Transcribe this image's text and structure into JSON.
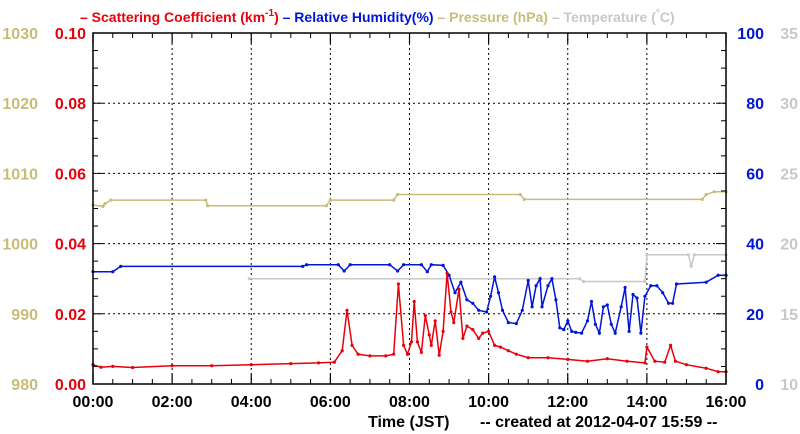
{
  "chart_data": {
    "type": "line",
    "legend_placement": "top",
    "xlabel": "Time (JST)",
    "created_note": "-- created at 2012-04-07 15:59 --",
    "x_ticks": [
      "00:00",
      "02:00",
      "04:00",
      "06:00",
      "08:00",
      "10:00",
      "12:00",
      "14:00",
      "16:00"
    ],
    "x_range_hours": [
      0,
      16
    ],
    "grid": true,
    "axes": {
      "scattering": {
        "ylim": [
          0,
          0.1
        ],
        "ticks": [
          "0.00",
          "0.02",
          "0.04",
          "0.06",
          "0.08",
          "0.10"
        ],
        "color": "#e8000b"
      },
      "pressure": {
        "ylim": [
          980,
          1030
        ],
        "ticks": [
          "980",
          "990",
          "1000",
          "1010",
          "1020",
          "1030"
        ],
        "color": "#c8bc78"
      },
      "humidity": {
        "ylim": [
          0,
          100
        ],
        "ticks": [
          "0",
          "20",
          "40",
          "60",
          "80",
          "100"
        ],
        "color": "#0015d8"
      },
      "temperature": {
        "ylim": [
          10,
          35
        ],
        "ticks": [
          "10",
          "15",
          "20",
          "25",
          "30",
          "35"
        ],
        "color": "#c8c8c8"
      }
    },
    "legend": [
      {
        "key": "scattering",
        "dash": "–",
        "label": "Scattering Coefficient (km",
        "sup": "-1",
        "close": ")",
        "color": "#e8000b"
      },
      {
        "key": "humidity",
        "dash": "–",
        "label": "Relative Humidity(%)",
        "color": "#0015d8"
      },
      {
        "key": "pressure",
        "dash": "–",
        "label": "Pressure (hPa)",
        "color": "#c8bc78"
      },
      {
        "key": "temperature",
        "dash": "–",
        "label": "Temperature (",
        "sup": "°",
        "close": "C)",
        "color": "#c8c8c8"
      }
    ],
    "series": [
      {
        "name": "Pressure (hPa)",
        "axis": "pressure",
        "color": "#c8bc78",
        "points": [
          [
            0,
            1005.5
          ],
          [
            0.25,
            1005.3
          ],
          [
            0.3,
            1005.7
          ],
          [
            0.45,
            1006.2
          ],
          [
            2.85,
            1006.2
          ],
          [
            2.9,
            1005.4
          ],
          [
            5.9,
            1005.4
          ],
          [
            6,
            1006.2
          ],
          [
            7.6,
            1006.2
          ],
          [
            7.7,
            1007
          ],
          [
            10.8,
            1007
          ],
          [
            10.9,
            1006.3
          ],
          [
            15.4,
            1006.3
          ],
          [
            15.5,
            1007
          ],
          [
            15.7,
            1007.4
          ],
          [
            16,
            1007.4
          ]
        ]
      },
      {
        "name": "Temperature (°C)",
        "axis": "temperature",
        "color": "#c8c8c8",
        "points": [
          [
            3.95,
            17.5
          ],
          [
            12.3,
            17.5
          ],
          [
            12.4,
            17.3
          ],
          [
            13.95,
            17.3
          ],
          [
            14,
            19.2
          ],
          [
            15.05,
            19.2
          ],
          [
            15.12,
            18.4
          ],
          [
            15.2,
            19.2
          ],
          [
            16,
            19.2
          ]
        ]
      },
      {
        "name": "Relative Humidity(%)",
        "axis": "humidity",
        "color": "#0015d8",
        "points": [
          [
            0,
            32
          ],
          [
            0.5,
            32
          ],
          [
            0.7,
            33.5
          ],
          [
            5.3,
            33.5
          ],
          [
            5.4,
            34
          ],
          [
            6.2,
            34
          ],
          [
            6.35,
            32.2
          ],
          [
            6.5,
            34
          ],
          [
            7.5,
            34
          ],
          [
            7.7,
            32.2
          ],
          [
            7.85,
            34
          ],
          [
            8.3,
            34
          ],
          [
            8.45,
            32
          ],
          [
            8.55,
            34
          ],
          [
            8.85,
            33.8
          ],
          [
            9.0,
            31
          ],
          [
            9.15,
            26
          ],
          [
            9.3,
            29
          ],
          [
            9.45,
            24
          ],
          [
            9.6,
            23
          ],
          [
            9.75,
            21
          ],
          [
            9.95,
            20.5
          ],
          [
            10.05,
            25
          ],
          [
            10.15,
            30.5
          ],
          [
            10.25,
            26
          ],
          [
            10.35,
            21
          ],
          [
            10.5,
            17.5
          ],
          [
            10.7,
            17.2
          ],
          [
            10.85,
            21
          ],
          [
            11.0,
            29.5
          ],
          [
            11.1,
            22
          ],
          [
            11.2,
            28
          ],
          [
            11.3,
            30
          ],
          [
            11.35,
            22
          ],
          [
            11.5,
            28
          ],
          [
            11.6,
            30
          ],
          [
            11.7,
            24
          ],
          [
            11.8,
            16
          ],
          [
            11.9,
            15.5
          ],
          [
            12.0,
            18
          ],
          [
            12.1,
            15
          ],
          [
            12.2,
            14.7
          ],
          [
            12.35,
            14.5
          ],
          [
            12.5,
            18
          ],
          [
            12.6,
            23.5
          ],
          [
            12.7,
            17
          ],
          [
            12.8,
            14.5
          ],
          [
            12.9,
            22
          ],
          [
            13.0,
            22.5
          ],
          [
            13.1,
            17
          ],
          [
            13.2,
            14.5
          ],
          [
            13.35,
            22
          ],
          [
            13.45,
            27.5
          ],
          [
            13.55,
            15
          ],
          [
            13.65,
            25.5
          ],
          [
            13.75,
            24.5
          ],
          [
            13.85,
            14.5
          ],
          [
            13.95,
            25
          ],
          [
            14.1,
            28
          ],
          [
            14.25,
            28
          ],
          [
            14.4,
            26
          ],
          [
            14.55,
            23
          ],
          [
            14.65,
            23
          ],
          [
            14.75,
            28.5
          ],
          [
            15.5,
            29
          ],
          [
            15.8,
            31
          ],
          [
            16,
            31
          ]
        ]
      },
      {
        "name": "Scattering Coefficient (km-1)",
        "axis": "scattering",
        "color": "#e8000b",
        "points": [
          [
            0,
            0.0055
          ],
          [
            0.2,
            0.0048
          ],
          [
            0.5,
            0.005
          ],
          [
            1,
            0.0047
          ],
          [
            2,
            0.0052
          ],
          [
            3,
            0.0052
          ],
          [
            4,
            0.0055
          ],
          [
            5,
            0.0058
          ],
          [
            5.7,
            0.006
          ],
          [
            6.1,
            0.0062
          ],
          [
            6.3,
            0.0095
          ],
          [
            6.42,
            0.021
          ],
          [
            6.55,
            0.011
          ],
          [
            6.7,
            0.0085
          ],
          [
            7.0,
            0.008
          ],
          [
            7.4,
            0.008
          ],
          [
            7.6,
            0.0085
          ],
          [
            7.72,
            0.0285
          ],
          [
            7.85,
            0.011
          ],
          [
            7.95,
            0.0085
          ],
          [
            8.05,
            0.012
          ],
          [
            8.12,
            0.0235
          ],
          [
            8.2,
            0.012
          ],
          [
            8.3,
            0.009
          ],
          [
            8.4,
            0.0195
          ],
          [
            8.5,
            0.014
          ],
          [
            8.55,
            0.011
          ],
          [
            8.65,
            0.018
          ],
          [
            8.75,
            0.0082
          ],
          [
            8.85,
            0.015
          ],
          [
            8.95,
            0.0315
          ],
          [
            9.05,
            0.0205
          ],
          [
            9.12,
            0.0175
          ],
          [
            9.25,
            0.027
          ],
          [
            9.35,
            0.013
          ],
          [
            9.45,
            0.0165
          ],
          [
            9.6,
            0.0155
          ],
          [
            9.75,
            0.013
          ],
          [
            9.85,
            0.0145
          ],
          [
            10.0,
            0.015
          ],
          [
            10.15,
            0.011
          ],
          [
            10.3,
            0.0105
          ],
          [
            10.5,
            0.0095
          ],
          [
            10.7,
            0.0085
          ],
          [
            11.0,
            0.0075
          ],
          [
            11.5,
            0.0075
          ],
          [
            12,
            0.007
          ],
          [
            12.5,
            0.0065
          ],
          [
            13,
            0.0072
          ],
          [
            13.5,
            0.0065
          ],
          [
            13.95,
            0.006
          ],
          [
            14,
            0.0105
          ],
          [
            14.2,
            0.0065
          ],
          [
            14.45,
            0.0062
          ],
          [
            14.6,
            0.011
          ],
          [
            14.72,
            0.0065
          ],
          [
            15.0,
            0.0055
          ],
          [
            15.5,
            0.0045
          ],
          [
            15.8,
            0.0035
          ],
          [
            16,
            0.0035
          ]
        ]
      }
    ]
  }
}
